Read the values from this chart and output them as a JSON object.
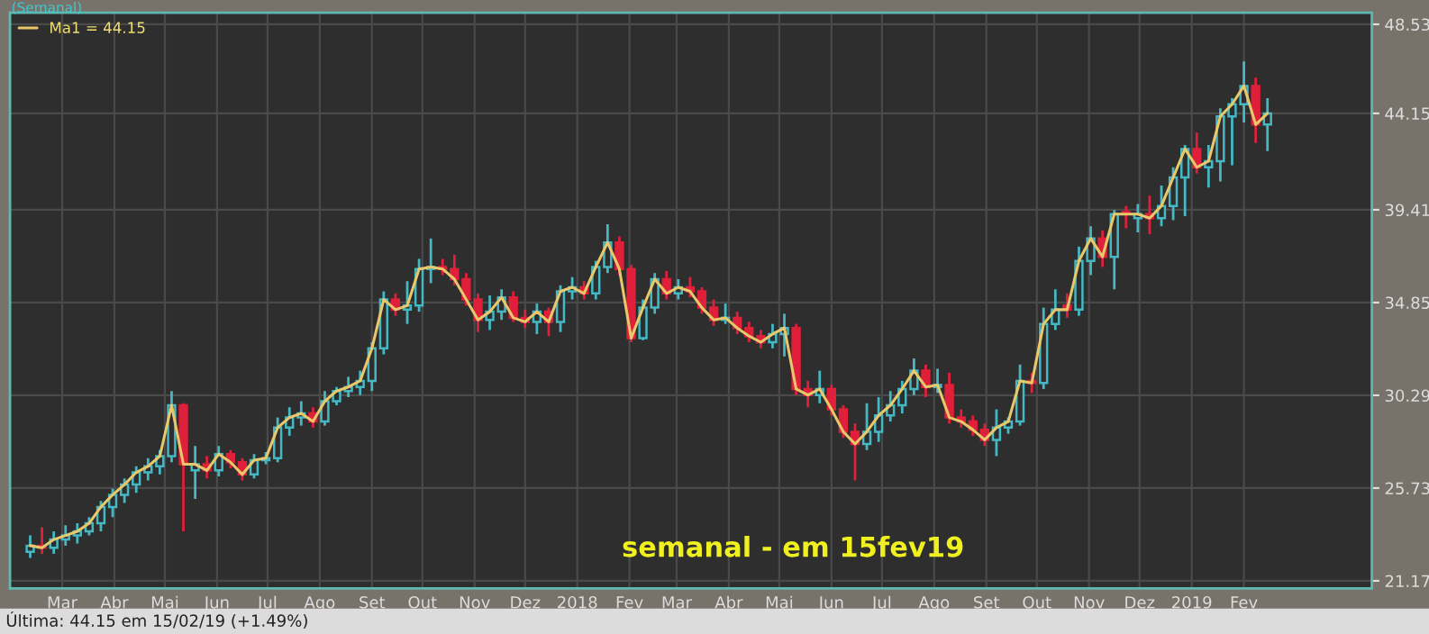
{
  "chart_data": {
    "type": "candlestick",
    "title": "semanal - em 15fev19",
    "annotations": [
      "(Semanal)",
      "Última: 44.15 em 15/02/19 (+1.49%)"
    ],
    "x": [
      "2017-02-10",
      "2017-02-17",
      "2017-02-24",
      "2017-03-03",
      "2017-03-10",
      "2017-03-17",
      "2017-03-24",
      "2017-03-31",
      "2017-04-07",
      "2017-04-14",
      "2017-04-21",
      "2017-04-28",
      "2017-05-05",
      "2017-05-12",
      "2017-05-19",
      "2017-05-26",
      "2017-06-02",
      "2017-06-09",
      "2017-06-16",
      "2017-06-23",
      "2017-06-30",
      "2017-07-07",
      "2017-07-14",
      "2017-07-21",
      "2017-07-28",
      "2017-08-04",
      "2017-08-11",
      "2017-08-18",
      "2017-08-25",
      "2017-09-01",
      "2017-09-08",
      "2017-09-15",
      "2017-09-22",
      "2017-09-29",
      "2017-10-06",
      "2017-10-13",
      "2017-10-20",
      "2017-10-27",
      "2017-11-03",
      "2017-11-10",
      "2017-11-17",
      "2017-11-24",
      "2017-12-01",
      "2017-12-08",
      "2017-12-15",
      "2017-12-22",
      "2017-12-29",
      "2018-01-05",
      "2018-01-12",
      "2018-01-19",
      "2018-01-26",
      "2018-02-02",
      "2018-02-09",
      "2018-02-16",
      "2018-02-23",
      "2018-03-02",
      "2018-03-09",
      "2018-03-16",
      "2018-03-23",
      "2018-03-30",
      "2018-04-06",
      "2018-04-13",
      "2018-04-20",
      "2018-04-27",
      "2018-05-04",
      "2018-05-11",
      "2018-05-18",
      "2018-05-25",
      "2018-06-01",
      "2018-06-08",
      "2018-06-15",
      "2018-06-22",
      "2018-06-29",
      "2018-07-06",
      "2018-07-13",
      "2018-07-20",
      "2018-07-27",
      "2018-08-03",
      "2018-08-10",
      "2018-08-17",
      "2018-08-24",
      "2018-08-31",
      "2018-09-07",
      "2018-09-14",
      "2018-09-21",
      "2018-09-28",
      "2018-10-05",
      "2018-10-12",
      "2018-10-19",
      "2018-10-26",
      "2018-11-02",
      "2018-11-09",
      "2018-11-16",
      "2018-11-23",
      "2018-11-30",
      "2018-12-07",
      "2018-12-14",
      "2018-12-21",
      "2018-12-28",
      "2019-01-04",
      "2019-01-11",
      "2019-01-18",
      "2019-01-25",
      "2019-02-01",
      "2019-02-08",
      "2019-02-15"
    ],
    "ohlc": [
      [
        22.6,
        23.4,
        22.3,
        22.9
      ],
      [
        22.9,
        23.8,
        22.5,
        22.8
      ],
      [
        22.8,
        23.6,
        22.5,
        23.2
      ],
      [
        23.2,
        23.9,
        22.9,
        23.4
      ],
      [
        23.4,
        24.0,
        23.0,
        23.6
      ],
      [
        23.6,
        24.3,
        23.4,
        24.0
      ],
      [
        24.0,
        25.1,
        23.6,
        24.8
      ],
      [
        24.8,
        25.7,
        24.3,
        25.4
      ],
      [
        25.4,
        26.2,
        25.0,
        25.9
      ],
      [
        25.9,
        26.8,
        25.5,
        26.5
      ],
      [
        26.5,
        27.2,
        26.1,
        26.8
      ],
      [
        26.8,
        27.6,
        26.4,
        27.3
      ],
      [
        27.3,
        30.5,
        27.0,
        29.8
      ],
      [
        29.8,
        29.9,
        23.6,
        26.9
      ],
      [
        26.6,
        27.8,
        25.2,
        26.9
      ],
      [
        26.9,
        27.3,
        26.2,
        26.6
      ],
      [
        26.6,
        27.8,
        26.3,
        27.4
      ],
      [
        27.4,
        27.6,
        26.7,
        27.0
      ],
      [
        27.0,
        27.2,
        26.1,
        26.4
      ],
      [
        26.4,
        27.4,
        26.2,
        27.1
      ],
      [
        27.1,
        27.5,
        26.9,
        27.2
      ],
      [
        27.2,
        29.2,
        27.0,
        28.7
      ],
      [
        28.7,
        29.7,
        28.3,
        29.2
      ],
      [
        29.2,
        30.0,
        28.8,
        29.4
      ],
      [
        29.4,
        29.7,
        28.7,
        29.0
      ],
      [
        29.0,
        30.5,
        28.8,
        30.0
      ],
      [
        30.0,
        30.7,
        29.8,
        30.5
      ],
      [
        30.5,
        31.2,
        30.2,
        30.7
      ],
      [
        30.7,
        31.5,
        30.3,
        31.0
      ],
      [
        31.0,
        32.9,
        30.5,
        32.6
      ],
      [
        32.6,
        35.4,
        32.3,
        35.0
      ],
      [
        35.0,
        35.3,
        34.2,
        34.5
      ],
      [
        34.5,
        35.9,
        33.8,
        34.7
      ],
      [
        34.7,
        37.0,
        34.4,
        36.5
      ],
      [
        36.5,
        38.0,
        35.8,
        36.6
      ],
      [
        36.6,
        37.0,
        36.2,
        36.5
      ],
      [
        36.5,
        37.2,
        35.7,
        36.0
      ],
      [
        36.0,
        36.3,
        34.7,
        35.0
      ],
      [
        35.0,
        35.3,
        33.4,
        34.0
      ],
      [
        34.0,
        35.2,
        33.5,
        34.4
      ],
      [
        34.4,
        35.5,
        34.0,
        35.1
      ],
      [
        35.1,
        35.4,
        33.9,
        34.1
      ],
      [
        34.1,
        34.5,
        33.6,
        33.9
      ],
      [
        33.9,
        34.8,
        33.3,
        34.4
      ],
      [
        34.4,
        34.6,
        33.2,
        33.9
      ],
      [
        33.9,
        35.7,
        33.4,
        35.4
      ],
      [
        35.4,
        36.1,
        35.0,
        35.6
      ],
      [
        35.6,
        35.9,
        35.0,
        35.3
      ],
      [
        35.3,
        36.9,
        35.0,
        36.6
      ],
      [
        36.6,
        38.7,
        36.3,
        37.8
      ],
      [
        37.8,
        38.1,
        36.2,
        36.5
      ],
      [
        36.5,
        36.7,
        32.9,
        33.1
      ],
      [
        33.1,
        35.0,
        33.0,
        34.6
      ],
      [
        34.6,
        36.3,
        34.3,
        36.0
      ],
      [
        36.0,
        36.4,
        35.0,
        35.3
      ],
      [
        35.3,
        36.0,
        35.0,
        35.6
      ],
      [
        35.6,
        36.1,
        35.1,
        35.4
      ],
      [
        35.4,
        35.6,
        34.3,
        34.6
      ],
      [
        34.6,
        35.0,
        33.7,
        34.0
      ],
      [
        34.0,
        34.8,
        33.8,
        34.1
      ],
      [
        34.1,
        34.4,
        33.3,
        33.6
      ],
      [
        33.6,
        33.9,
        32.9,
        33.2
      ],
      [
        33.2,
        33.5,
        32.6,
        32.9
      ],
      [
        32.9,
        33.8,
        32.6,
        33.3
      ],
      [
        33.3,
        34.3,
        32.2,
        33.6
      ],
      [
        33.6,
        33.8,
        30.3,
        30.6
      ],
      [
        30.6,
        31.0,
        29.7,
        30.3
      ],
      [
        30.3,
        31.5,
        29.9,
        30.6
      ],
      [
        30.6,
        30.8,
        29.3,
        29.6
      ],
      [
        29.6,
        29.8,
        28.2,
        28.5
      ],
      [
        28.5,
        28.9,
        26.1,
        27.9
      ],
      [
        27.9,
        29.9,
        27.6,
        28.5
      ],
      [
        28.5,
        30.2,
        28.0,
        29.3
      ],
      [
        29.3,
        30.5,
        29.0,
        29.8
      ],
      [
        29.8,
        31.0,
        29.4,
        30.6
      ],
      [
        30.6,
        32.1,
        30.3,
        31.5
      ],
      [
        31.5,
        31.8,
        30.2,
        30.7
      ],
      [
        30.7,
        31.6,
        30.4,
        30.8
      ],
      [
        30.8,
        31.4,
        28.9,
        29.2
      ],
      [
        29.2,
        29.6,
        28.7,
        29.0
      ],
      [
        29.0,
        29.3,
        28.3,
        28.6
      ],
      [
        28.6,
        28.9,
        27.8,
        28.1
      ],
      [
        28.1,
        29.6,
        27.3,
        28.7
      ],
      [
        28.7,
        29.2,
        28.4,
        29.0
      ],
      [
        29.0,
        31.8,
        28.8,
        31.0
      ],
      [
        31.0,
        31.4,
        30.4,
        30.9
      ],
      [
        30.9,
        34.6,
        30.6,
        33.8
      ],
      [
        33.8,
        35.5,
        33.5,
        34.5
      ],
      [
        34.7,
        35.3,
        34.1,
        34.5
      ],
      [
        34.5,
        37.6,
        34.2,
        36.9
      ],
      [
        36.9,
        38.6,
        36.2,
        38.0
      ],
      [
        38.0,
        38.4,
        36.6,
        37.1
      ],
      [
        37.1,
        39.4,
        35.5,
        39.2
      ],
      [
        39.3,
        39.6,
        38.5,
        39.2
      ],
      [
        39.0,
        39.7,
        38.3,
        39.2
      ],
      [
        39.2,
        40.1,
        38.2,
        39.0
      ],
      [
        39.0,
        40.6,
        38.6,
        39.6
      ],
      [
        39.6,
        41.5,
        38.9,
        41.0
      ],
      [
        41.0,
        42.6,
        39.1,
        42.4
      ],
      [
        42.4,
        43.2,
        41.2,
        41.5
      ],
      [
        41.5,
        42.6,
        40.5,
        41.8
      ],
      [
        41.8,
        44.4,
        40.8,
        44.0
      ],
      [
        44.0,
        44.9,
        41.6,
        44.6
      ],
      [
        44.6,
        46.7,
        43.7,
        45.5
      ],
      [
        45.5,
        45.9,
        42.7,
        43.6
      ],
      [
        43.6,
        44.9,
        42.3,
        44.15
      ]
    ],
    "colors": [
      "#45b8c4",
      "#e0203a",
      "#45b8c4",
      "#45b8c4",
      "#45b8c4",
      "#45b8c4",
      "#45b8c4",
      "#45b8c4",
      "#45b8c4",
      "#45b8c4",
      "#45b8c4",
      "#45b8c4",
      "#45b8c4",
      "#e0203a",
      "#45b8c4",
      "#e0203a",
      "#45b8c4",
      "#e0203a",
      "#e0203a",
      "#45b8c4",
      "#45b8c4",
      "#45b8c4",
      "#45b8c4",
      "#45b8c4",
      "#e0203a",
      "#45b8c4",
      "#45b8c4",
      "#45b8c4",
      "#45b8c4",
      "#45b8c4",
      "#45b8c4",
      "#e0203a",
      "#45b8c4",
      "#45b8c4",
      "#45b8c4",
      "#e0203a",
      "#e0203a",
      "#e0203a",
      "#e0203a",
      "#45b8c4",
      "#45b8c4",
      "#e0203a",
      "#e0203a",
      "#45b8c4",
      "#e0203a",
      "#45b8c4",
      "#45b8c4",
      "#e0203a",
      "#45b8c4",
      "#45b8c4",
      "#e0203a",
      "#e0203a",
      "#45b8c4",
      "#45b8c4",
      "#e0203a",
      "#45b8c4",
      "#e0203a",
      "#e0203a",
      "#e0203a",
      "#45b8c4",
      "#e0203a",
      "#e0203a",
      "#e0203a",
      "#45b8c4",
      "#45b8c4",
      "#e0203a",
      "#e0203a",
      "#45b8c4",
      "#e0203a",
      "#e0203a",
      "#e0203a",
      "#45b8c4",
      "#45b8c4",
      "#45b8c4",
      "#45b8c4",
      "#45b8c4",
      "#e0203a",
      "#45b8c4",
      "#e0203a",
      "#e0203a",
      "#e0203a",
      "#e0203a",
      "#45b8c4",
      "#45b8c4",
      "#45b8c4",
      "#e0203a",
      "#45b8c4",
      "#45b8c4",
      "#e0203a",
      "#45b8c4",
      "#45b8c4",
      "#e0203a",
      "#45b8c4",
      "#e0203a",
      "#45b8c4",
      "#e0203a",
      "#45b8c4",
      "#45b8c4",
      "#45b8c4",
      "#e0203a",
      "#45b8c4",
      "#45b8c4",
      "#45b8c4",
      "#45b8c4",
      "#e0203a",
      "#45b8c4"
    ],
    "series": [
      {
        "type": "line",
        "name": "Ma1 = 44.15",
        "color": "#e8c86a",
        "values": [
          22.9,
          22.8,
          23.2,
          23.4,
          23.6,
          24.0,
          24.8,
          25.4,
          25.9,
          26.5,
          26.8,
          27.3,
          29.8,
          26.9,
          26.9,
          26.6,
          27.4,
          27.0,
          26.4,
          27.1,
          27.2,
          28.7,
          29.2,
          29.4,
          29.0,
          30.0,
          30.5,
          30.7,
          31.0,
          32.6,
          35.0,
          34.5,
          34.7,
          36.5,
          36.6,
          36.5,
          36.0,
          35.0,
          34.0,
          34.4,
          35.1,
          34.1,
          33.9,
          34.4,
          33.9,
          35.4,
          35.6,
          35.3,
          36.6,
          37.8,
          36.5,
          33.1,
          34.6,
          36.0,
          35.3,
          35.6,
          35.4,
          34.6,
          34.0,
          34.1,
          33.6,
          33.2,
          32.9,
          33.3,
          33.6,
          30.6,
          30.3,
          30.6,
          29.6,
          28.5,
          27.9,
          28.5,
          29.3,
          29.8,
          30.6,
          31.5,
          30.7,
          30.8,
          29.2,
          29.0,
          28.6,
          28.1,
          28.7,
          29.0,
          31.0,
          30.9,
          33.8,
          34.5,
          34.5,
          36.9,
          38.0,
          37.1,
          39.2,
          39.2,
          39.2,
          39.0,
          39.6,
          41.0,
          42.4,
          41.5,
          41.8,
          44.0,
          44.6,
          45.5,
          43.6,
          44.15
        ]
      }
    ],
    "xlim": [
      "2017-01-29",
      "2019-04-18"
    ],
    "xticks": [
      {
        "value": "2017-03-01",
        "label": "Mar"
      },
      {
        "value": "2017-04-01",
        "label": "Abr"
      },
      {
        "value": "2017-05-01",
        "label": "Mai"
      },
      {
        "value": "2017-06-01",
        "label": "Jun"
      },
      {
        "value": "2017-07-01",
        "label": "Jul"
      },
      {
        "value": "2017-08-01",
        "label": "Ago"
      },
      {
        "value": "2017-09-01",
        "label": "Set"
      },
      {
        "value": "2017-10-01",
        "label": "Out"
      },
      {
        "value": "2017-11-01",
        "label": "Nov"
      },
      {
        "value": "2017-12-01",
        "label": "Dez"
      },
      {
        "value": "2018-01-01",
        "label": "2018"
      },
      {
        "value": "2018-02-01",
        "label": "Fev"
      },
      {
        "value": "2018-03-01",
        "label": "Mar"
      },
      {
        "value": "2018-04-01",
        "label": "Abr"
      },
      {
        "value": "2018-05-01",
        "label": "Mai"
      },
      {
        "value": "2018-06-01",
        "label": "Jun"
      },
      {
        "value": "2018-07-01",
        "label": "Jul"
      },
      {
        "value": "2018-08-01",
        "label": "Ago"
      },
      {
        "value": "2018-09-01",
        "label": "Set"
      },
      {
        "value": "2018-10-01",
        "label": "Out"
      },
      {
        "value": "2018-11-01",
        "label": "Nov"
      },
      {
        "value": "2018-12-01",
        "label": "Dez"
      },
      {
        "value": "2019-01-01",
        "label": "2019"
      },
      {
        "value": "2019-02-01",
        "label": "Fev"
      }
    ],
    "ylim": [
      20.8,
      49.1
    ],
    "yticks": [
      21.17,
      25.73,
      30.29,
      34.85,
      39.41,
      44.15,
      48.53
    ],
    "grid": true,
    "legend": "top left"
  }
}
